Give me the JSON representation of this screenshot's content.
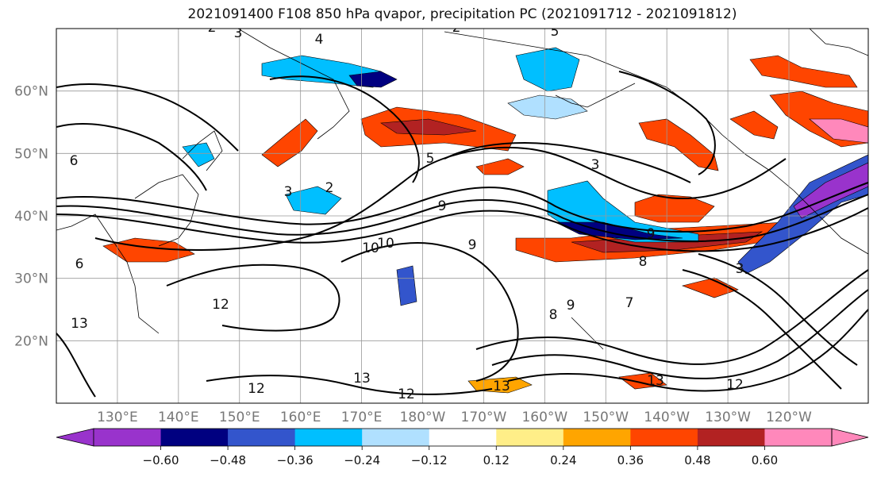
{
  "title": "2021091400 F108 850 hPa qvapor, precipitation PC (2021091712 - 2021091812)",
  "chart_data": {
    "type": "heatmap",
    "title": "2021091400 F108 850 hPa qvapor, precipitation PC (2021091712 - 2021091812)",
    "projection": "cylindrical map, North Pacific",
    "lat_ticks": [
      "60°N",
      "50°N",
      "40°N",
      "30°N",
      "20°N"
    ],
    "lat_values": [
      60,
      50,
      40,
      30,
      20
    ],
    "lon_ticks": [
      "130°E",
      "140°E",
      "150°E",
      "160°E",
      "170°E",
      "180°W",
      "170°W",
      "160°W",
      "150°W",
      "140°W",
      "130°W",
      "120°W"
    ],
    "lon_values": [
      130,
      140,
      150,
      160,
      170,
      180,
      190,
      200,
      210,
      220,
      230,
      240
    ],
    "xlim": [
      120,
      253
    ],
    "ylim": [
      10,
      70
    ],
    "grid": true,
    "colorbar": {
      "ticks": [
        "−0.60",
        "−0.48",
        "−0.36",
        "−0.24",
        "−0.12",
        "0.12",
        "0.24",
        "0.36",
        "0.48",
        "0.60"
      ],
      "bounds": [
        -0.6,
        -0.48,
        -0.36,
        -0.24,
        -0.12,
        0.12,
        0.24,
        0.36,
        0.48,
        0.6
      ],
      "colors": [
        "#9933cc",
        "#000080",
        "#3355cc",
        "#00bfff",
        "#b0e0ff",
        "#ffffff",
        "#ffee88",
        "#ffa500",
        "#ff4500",
        "#b22222",
        "#ff88bb"
      ],
      "extend": "both"
    },
    "contour_labels": [
      "2",
      "3",
      "4",
      "2",
      "5",
      "3",
      "2",
      "5",
      "6",
      "3",
      "9",
      "10",
      "9",
      "9",
      "8",
      "10",
      "12",
      "6",
      "13",
      "12",
      "13",
      "12",
      "13",
      "13",
      "12",
      "8",
      "7",
      "9",
      "3"
    ]
  }
}
